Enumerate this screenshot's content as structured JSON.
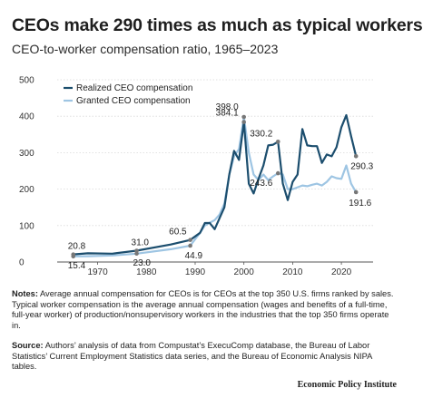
{
  "header": {
    "title": "CEOs make 290 times as much as typical workers",
    "subtitle": "CEO-to-worker compensation ratio, 1965–2023"
  },
  "chart_data": {
    "type": "line",
    "title": "CEOs make 290 times as much as typical workers",
    "subtitle": "CEO-to-worker compensation ratio, 1965–2023",
    "xlabel": "",
    "ylabel": "",
    "xlim": [
      1965,
      2023
    ],
    "ylim": [
      0,
      500
    ],
    "x_ticks": [
      1970,
      1980,
      1990,
      2000,
      2010,
      2020
    ],
    "y_ticks": [
      0,
      100,
      200,
      300,
      400,
      500
    ],
    "grid": true,
    "legend_position": "top-left",
    "series": [
      {
        "name": "Realized CEO compensation",
        "color": "#1c4e6e",
        "points": [
          [
            1965,
            20.8
          ],
          [
            1968,
            24
          ],
          [
            1973,
            23
          ],
          [
            1978,
            31.0
          ],
          [
            1985,
            48
          ],
          [
            1989,
            60.5
          ],
          [
            1991,
            80
          ],
          [
            1992,
            107
          ],
          [
            1993,
            107
          ],
          [
            1994,
            90
          ],
          [
            1995,
            120
          ],
          [
            1996,
            150
          ],
          [
            1997,
            240
          ],
          [
            1998,
            305
          ],
          [
            1999,
            280
          ],
          [
            2000,
            384.1
          ],
          [
            2001,
            215
          ],
          [
            2002,
            188
          ],
          [
            2003,
            228
          ],
          [
            2004,
            265
          ],
          [
            2005,
            320
          ],
          [
            2006,
            322
          ],
          [
            2007,
            330.2
          ],
          [
            2008,
            215
          ],
          [
            2009,
            170
          ],
          [
            2010,
            220
          ],
          [
            2011,
            240
          ],
          [
            2012,
            365
          ],
          [
            2013,
            320
          ],
          [
            2014,
            318
          ],
          [
            2015,
            318
          ],
          [
            2016,
            272
          ],
          [
            2017,
            295
          ],
          [
            2018,
            290
          ],
          [
            2019,
            315
          ],
          [
            2020,
            370
          ],
          [
            2021,
            403
          ],
          [
            2022,
            345
          ],
          [
            2023,
            290.3
          ]
        ]
      },
      {
        "name": "Granted CEO compensation",
        "color": "#9ec5e3",
        "points": [
          [
            1965,
            15.4
          ],
          [
            1968,
            16
          ],
          [
            1973,
            18
          ],
          [
            1978,
            23.0
          ],
          [
            1985,
            35
          ],
          [
            1989,
            44.9
          ],
          [
            1991,
            80
          ],
          [
            1992,
            100
          ],
          [
            1993,
            108
          ],
          [
            1994,
            115
          ],
          [
            1995,
            130
          ],
          [
            1996,
            160
          ],
          [
            1997,
            240
          ],
          [
            1998,
            290
          ],
          [
            1999,
            310
          ],
          [
            2000,
            398.0
          ],
          [
            2001,
            300
          ],
          [
            2002,
            240
          ],
          [
            2003,
            225
          ],
          [
            2004,
            240
          ],
          [
            2005,
            225
          ],
          [
            2006,
            235
          ],
          [
            2007,
            243.6
          ],
          [
            2008,
            240
          ],
          [
            2009,
            200
          ],
          [
            2010,
            200
          ],
          [
            2011,
            205
          ],
          [
            2012,
            210
          ],
          [
            2013,
            208
          ],
          [
            2014,
            212
          ],
          [
            2015,
            215
          ],
          [
            2016,
            210
          ],
          [
            2017,
            220
          ],
          [
            2018,
            235
          ],
          [
            2019,
            230
          ],
          [
            2020,
            228
          ],
          [
            2021,
            265
          ],
          [
            2022,
            215
          ],
          [
            2023,
            191.6
          ]
        ]
      }
    ],
    "annotations": [
      {
        "x": 1965,
        "y": 20.8,
        "label": "20.8",
        "series": 0
      },
      {
        "x": 1965,
        "y": 15.4,
        "label": "15.4",
        "series": 1
      },
      {
        "x": 1978,
        "y": 31.0,
        "label": "31.0",
        "series": 0
      },
      {
        "x": 1978,
        "y": 23.0,
        "label": "23.0",
        "series": 1
      },
      {
        "x": 1989,
        "y": 60.5,
        "label": "60.5",
        "series": 0
      },
      {
        "x": 1989,
        "y": 44.9,
        "label": "44.9",
        "series": 1
      },
      {
        "x": 2000,
        "y": 398.0,
        "label": "398.0",
        "series": 1
      },
      {
        "x": 2000,
        "y": 384.1,
        "label": "384.1",
        "series": 0
      },
      {
        "x": 2007,
        "y": 330.2,
        "label": "330.2",
        "series": 0
      },
      {
        "x": 2007,
        "y": 243.6,
        "label": "243.6",
        "series": 1
      },
      {
        "x": 2023,
        "y": 290.3,
        "label": "290.3",
        "series": 0
      },
      {
        "x": 2023,
        "y": 191.6,
        "label": "191.6",
        "series": 1
      }
    ]
  },
  "notes": {
    "label": "Notes:",
    "text": " Average annual compensation for CEOs is for CEOs at the top 350 U.S. firms ranked by sales. Typical worker compensation is the average annual compensation (wages and benefits of a full-time, full-year worker) of production/nonsupervisory workers in the industries that the top 350 firms operate in."
  },
  "source": {
    "label": "Source:",
    "text": " Authors’ analysis of data from Compustat’s ExecuComp database, the Bureau of Labor Statistics’ Current Employment Statistics data series, and the Bureau of Economic Analysis NIPA tables."
  },
  "brand": "Economic Policy Institute"
}
